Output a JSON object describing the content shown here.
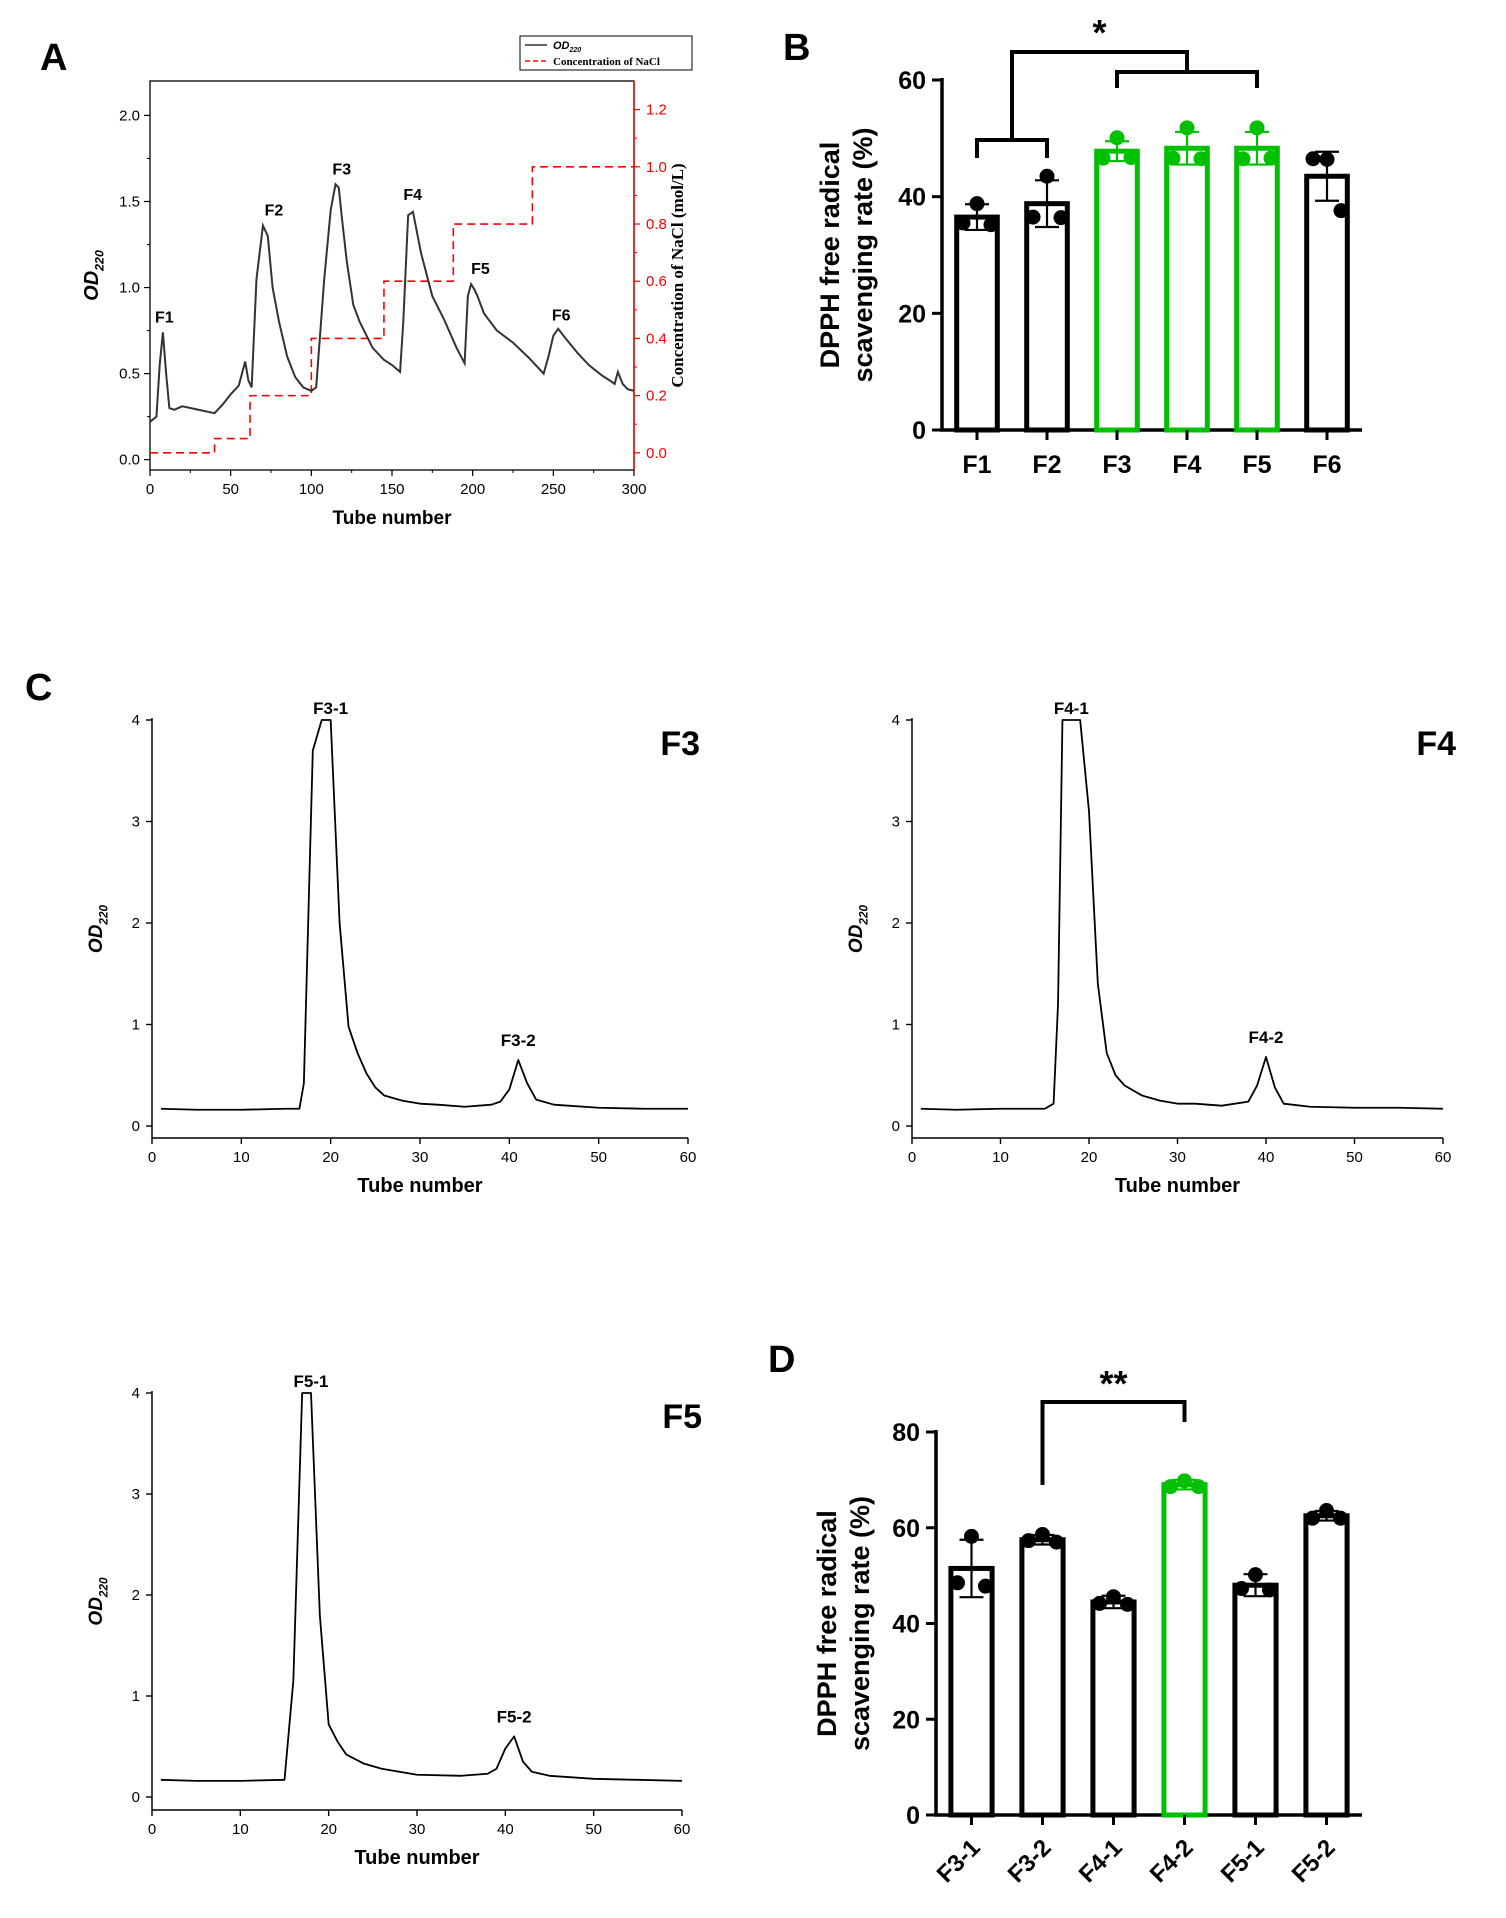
{
  "colors": {
    "black": "#000000",
    "dark_line": "#333333",
    "red": "#ff0000",
    "green": "#00c000",
    "ann_red": "#ff2a2a"
  },
  "chart_data": [
    {
      "panel": "A",
      "type": "line",
      "xlabel": "Tube number",
      "ylabel": "OD",
      "ylabel_sub": "220",
      "y2label": "Concentration of  NaCl (mol/L)",
      "xlim": [
        0,
        300
      ],
      "ylim": [
        -0.06,
        2.2
      ],
      "y2lim": [
        -0.06,
        1.3
      ],
      "xticks": [
        "0",
        "50",
        "100",
        "150",
        "200",
        "250",
        "300"
      ],
      "yticks": [
        "0.0",
        "0.5",
        "1.0",
        "1.5",
        "2.0"
      ],
      "y2ticks": [
        "0.0",
        "0.2",
        "0.4",
        "0.6",
        "0.8",
        "1.0",
        "1.2"
      ],
      "legend": {
        "series1": "OD",
        "series1_sub": "220",
        "series2": "Concentration of  NaCl"
      },
      "peaks": [
        {
          "label": "F1",
          "x": 7,
          "y": 0.74
        },
        {
          "label": "F2",
          "x": 75,
          "y": 1.36
        },
        {
          "label": "F3",
          "x": 117,
          "y": 1.6
        },
        {
          "label": "F4",
          "x": 161,
          "y": 1.45
        },
        {
          "label": "F5",
          "x": 203,
          "y": 1.02
        },
        {
          "label": "F6",
          "x": 253,
          "y": 0.75
        }
      ],
      "series": [
        {
          "name": "OD220",
          "x": [
            0,
            4,
            6,
            8,
            10,
            12,
            15,
            20,
            25,
            30,
            40,
            45,
            50,
            55,
            57,
            59,
            61,
            63,
            66,
            70,
            73,
            76,
            80,
            85,
            90,
            95,
            100,
            103,
            108,
            112,
            115,
            117,
            119,
            122,
            126,
            130,
            138,
            145,
            150,
            155,
            157,
            160,
            163,
            168,
            175,
            182,
            190,
            195,
            197,
            199,
            201,
            203,
            207,
            215,
            225,
            235,
            244,
            247,
            250,
            253,
            258,
            265,
            272,
            280,
            285,
            288,
            290,
            293,
            296,
            300
          ],
          "y": [
            0.22,
            0.25,
            0.55,
            0.74,
            0.5,
            0.3,
            0.29,
            0.31,
            0.3,
            0.29,
            0.27,
            0.32,
            0.38,
            0.43,
            0.5,
            0.57,
            0.46,
            0.42,
            1.05,
            1.36,
            1.3,
            1.0,
            0.8,
            0.6,
            0.48,
            0.42,
            0.4,
            0.42,
            1.05,
            1.45,
            1.6,
            1.58,
            1.4,
            1.15,
            0.9,
            0.8,
            0.65,
            0.58,
            0.55,
            0.51,
            0.8,
            1.42,
            1.44,
            1.2,
            0.95,
            0.82,
            0.65,
            0.56,
            0.95,
            1.02,
            0.99,
            0.95,
            0.85,
            0.75,
            0.68,
            0.59,
            0.5,
            0.6,
            0.72,
            0.76,
            0.7,
            0.62,
            0.55,
            0.49,
            0.46,
            0.44,
            0.51,
            0.44,
            0.41,
            0.4
          ]
        },
        {
          "name": "Concentration of NaCl",
          "axis": "y2",
          "x": [
            0,
            40,
            40,
            62,
            62,
            100,
            100,
            145,
            145,
            188,
            188,
            237,
            237,
            300
          ],
          "y": [
            0.0,
            0.0,
            0.05,
            0.05,
            0.2,
            0.2,
            0.4,
            0.4,
            0.6,
            0.6,
            0.8,
            0.8,
            1.0,
            1.0
          ]
        }
      ]
    },
    {
      "panel": "B",
      "type": "bar",
      "ylabel": "DPPH free radical scavenging rate (%)",
      "ylim": [
        0,
        60
      ],
      "yticks": [
        "0",
        "20",
        "40",
        "60"
      ],
      "categories": [
        "F1",
        "F2",
        "F3",
        "F4",
        "F5",
        "F6"
      ],
      "values": [
        36.5,
        38.8,
        47.8,
        48.3,
        48.3,
        43.5
      ],
      "errors": [
        2.2,
        4.0,
        1.7,
        2.8,
        2.8,
        4.2
      ],
      "points": [
        [
          38.8,
          35.5,
          35.2
        ],
        [
          43.5,
          36.5,
          36.4
        ],
        [
          50.1,
          46.6,
          46.7
        ],
        [
          51.8,
          46.6,
          46.5
        ],
        [
          51.8,
          46.5,
          46.6
        ],
        [
          46.4,
          46.5,
          37.6
        ]
      ],
      "highlight": [
        false,
        false,
        true,
        true,
        true,
        false
      ],
      "significance": "*"
    },
    {
      "panel": "C-F3",
      "type": "line",
      "label": "F3",
      "xlabel": "Tube number",
      "ylabel": "OD",
      "ylabel_sub": "220",
      "xlim": [
        0,
        60
      ],
      "ylim": [
        -0.1,
        4.0
      ],
      "xticks": [
        "0",
        "10",
        "20",
        "30",
        "40",
        "50",
        "60"
      ],
      "yticks": [
        "0",
        "1",
        "2",
        "3",
        "4"
      ],
      "peaks": [
        {
          "label": "F3-1",
          "x": 20,
          "y": 4.0
        },
        {
          "label": "F3-2",
          "x": 41,
          "y": 0.65
        }
      ],
      "series": [
        {
          "name": "OD220",
          "x": [
            1,
            5,
            10,
            15,
            16.5,
            17,
            18,
            19,
            20,
            21,
            22,
            23,
            24,
            25,
            26,
            28,
            30,
            32,
            35,
            38,
            39,
            40,
            41,
            42,
            43,
            45,
            50,
            55,
            60
          ],
          "y": [
            0.17,
            0.16,
            0.16,
            0.17,
            0.17,
            0.42,
            3.7,
            4.0,
            4.0,
            2.0,
            0.98,
            0.72,
            0.52,
            0.38,
            0.3,
            0.25,
            0.22,
            0.21,
            0.19,
            0.21,
            0.24,
            0.36,
            0.65,
            0.42,
            0.26,
            0.21,
            0.18,
            0.17,
            0.17
          ]
        }
      ]
    },
    {
      "panel": "C-F4",
      "type": "line",
      "label": "F4",
      "xlabel": "Tube number",
      "ylabel": "OD",
      "ylabel_sub": "220",
      "xlim": [
        0,
        60
      ],
      "ylim": [
        -0.1,
        4.0
      ],
      "xticks": [
        "0",
        "10",
        "20",
        "30",
        "40",
        "50",
        "60"
      ],
      "yticks": [
        "0",
        "1",
        "2",
        "3",
        "4"
      ],
      "peaks": [
        {
          "label": "F4-1",
          "x": 18,
          "y": 4.0
        },
        {
          "label": "F4-2",
          "x": 40,
          "y": 0.68
        }
      ],
      "series": [
        {
          "name": "OD220",
          "x": [
            1,
            5,
            10,
            15,
            16,
            16.5,
            17,
            18,
            19,
            20,
            21,
            22,
            23,
            24,
            26,
            28,
            30,
            32,
            35,
            38,
            39,
            40,
            41,
            42,
            45,
            50,
            55,
            60
          ],
          "y": [
            0.17,
            0.16,
            0.17,
            0.17,
            0.22,
            1.2,
            4.0,
            4.0,
            4.0,
            3.1,
            1.4,
            0.72,
            0.5,
            0.4,
            0.3,
            0.25,
            0.22,
            0.22,
            0.2,
            0.24,
            0.4,
            0.68,
            0.38,
            0.22,
            0.19,
            0.18,
            0.18,
            0.17
          ]
        }
      ]
    },
    {
      "panel": "C-F5",
      "type": "line",
      "label": "F5",
      "xlabel": "Tube number",
      "ylabel": "OD",
      "ylabel_sub": "220",
      "xlim": [
        0,
        60
      ],
      "ylim": [
        -0.1,
        4.0
      ],
      "xticks": [
        "0",
        "10",
        "20",
        "30",
        "40",
        "50",
        "60"
      ],
      "yticks": [
        "0",
        "1",
        "2",
        "3",
        "4"
      ],
      "peaks": [
        {
          "label": "F5-1",
          "x": 18,
          "y": 4.0
        },
        {
          "label": "F5-2",
          "x": 41,
          "y": 0.6
        }
      ],
      "series": [
        {
          "name": "OD220",
          "x": [
            1,
            5,
            10,
            15,
            16,
            17,
            18,
            19,
            20,
            21,
            22,
            24,
            26,
            28,
            30,
            35,
            38,
            39,
            40,
            41,
            42,
            43,
            45,
            50,
            55,
            60
          ],
          "y": [
            0.17,
            0.16,
            0.16,
            0.17,
            1.15,
            4.0,
            4.0,
            1.8,
            0.72,
            0.55,
            0.42,
            0.33,
            0.28,
            0.25,
            0.22,
            0.21,
            0.23,
            0.28,
            0.48,
            0.6,
            0.35,
            0.25,
            0.21,
            0.18,
            0.17,
            0.16
          ]
        }
      ]
    },
    {
      "panel": "D",
      "type": "bar",
      "ylabel": "DPPH free radical scavenging rate (%)",
      "ylim": [
        0,
        80
      ],
      "yticks": [
        "0",
        "20",
        "40",
        "60",
        "80"
      ],
      "categories": [
        "F3-1",
        "F3-2",
        "F4-1",
        "F4-2",
        "F5-1",
        "F5-2"
      ],
      "values": [
        51.5,
        57.5,
        44.5,
        69.0,
        48.0,
        62.5
      ],
      "errors": [
        6.0,
        1.0,
        1.3,
        1.0,
        2.3,
        1.0
      ],
      "points": [
        [
          58.2,
          48.5,
          47.8
        ],
        [
          58.6,
          57.3,
          57.0
        ],
        [
          45.6,
          44.2,
          44.0
        ],
        [
          69.8,
          68.6,
          68.6
        ],
        [
          50.2,
          47.3,
          47.0
        ],
        [
          63.6,
          62.0,
          62.0
        ]
      ],
      "highlight": [
        false,
        false,
        false,
        true,
        false,
        false
      ],
      "significance": "**"
    }
  ],
  "panel_labels": {
    "a": "A",
    "b": "B",
    "c": "C",
    "d": "D"
  }
}
